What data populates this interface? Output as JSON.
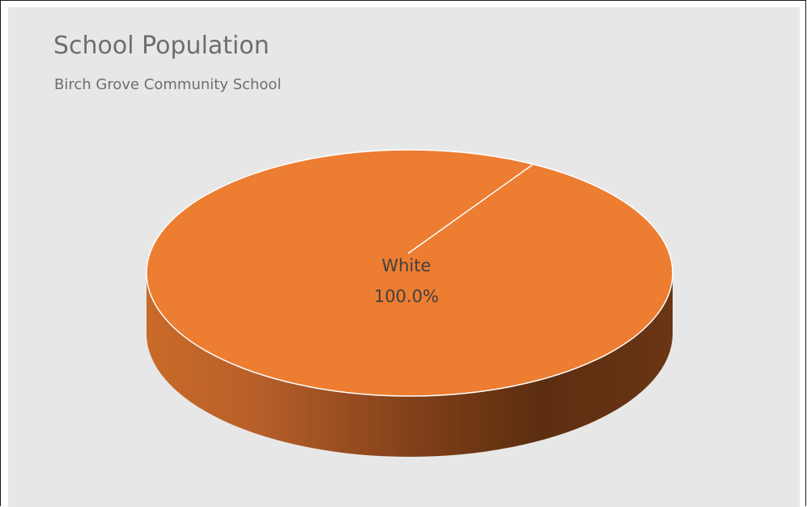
{
  "chart_data": {
    "type": "pie",
    "title": "School Population",
    "subtitle": "Birch Grove Community School",
    "categories": [
      "White"
    ],
    "values": [
      100.0
    ],
    "data_labels": [
      {
        "category": "White",
        "percent": "100.0%"
      }
    ],
    "style_3d": true,
    "legend": "none",
    "colors": {
      "slice_top": "#ed7d31",
      "slice_side_light": "#c96a28",
      "slice_side_dark": "#5c2e10",
      "background": "#e7e7e7",
      "text": "#6e6e6e",
      "label_text": "#404040"
    }
  }
}
